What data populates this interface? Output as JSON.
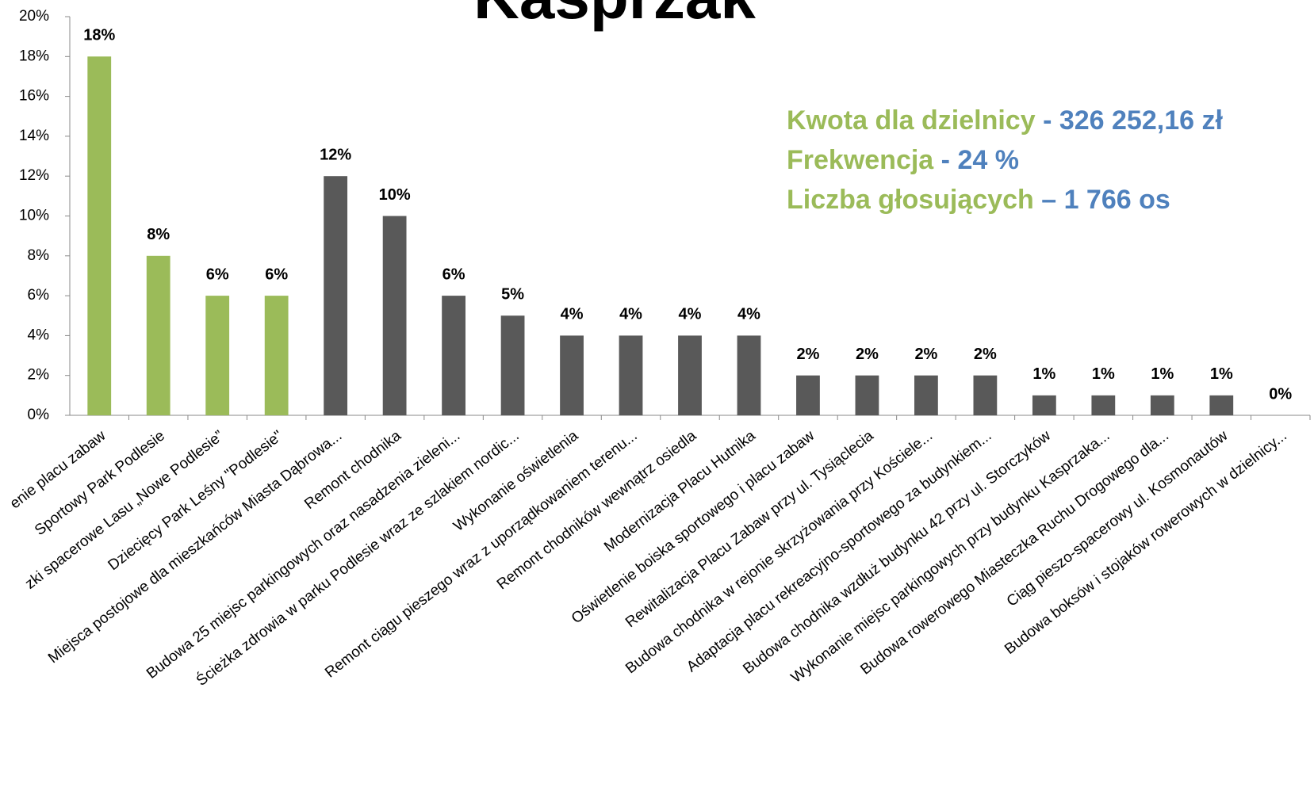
{
  "chart_data": {
    "type": "bar",
    "title": "Kasprzak",
    "categories": [
      "enie placu zabaw",
      "Sportowy Park Podlesie",
      "zki spacerowe Lasu „Nowe Podlesie”",
      "Dziecięcy Park Leśny \"Podlesie\"",
      "Miejsca postojowe dla mieszkańców Miasta Dąbrowa...",
      "Remont chodnika",
      "Budowa 25 miejsc parkingowych oraz nasadzenia zieleni...",
      "Ścieżka zdrowia w parku Podlesie wraz ze szlakiem nordic...",
      "Wykonanie oświetlenia",
      "Remont ciągu pieszego wraz z uporządkowaniem terenu...",
      "Remont chodników wewnątrz osiedla",
      "Modernizacja Placu Hutnika",
      "Oświetlenie boiska sportowego i placu zabaw",
      "Rewitalizacja Placu Zabaw przy ul. Tysiąclecia",
      "Budowa chodnika w rejonie skrzyżowania przy Kościele...",
      "Adaptacja placu rekreacyjno-sportowego za budynkiem...",
      "Budowa chodnika wzdłuż budynku 42 przy ul. Storczyków",
      "Wykonanie miejsc parkingowych przy budynku Kasprzaka...",
      "Budowa rowerowego Miasteczka Ruchu Drogowego dla...",
      "Ciąg pieszo-spacerowy ul. Kosmonautów",
      "Budowa boksów i stojaków rowerowych w dzielnicy..."
    ],
    "values": [
      18,
      8,
      6,
      6,
      12,
      10,
      6,
      5,
      4,
      4,
      4,
      4,
      2,
      2,
      2,
      2,
      1,
      1,
      1,
      1,
      0
    ],
    "value_labels": [
      "18%",
      "8%",
      "6%",
      "6%",
      "12%",
      "10%",
      "6%",
      "5%",
      "4%",
      "4%",
      "4%",
      "4%",
      "2%",
      "2%",
      "2%",
      "2%",
      "1%",
      "1%",
      "1%",
      "1%",
      "0%"
    ],
    "colors": [
      "#9bbb59",
      "#9bbb59",
      "#9bbb59",
      "#9bbb59",
      "#595959",
      "#595959",
      "#595959",
      "#595959",
      "#595959",
      "#595959",
      "#595959",
      "#595959",
      "#595959",
      "#595959",
      "#595959",
      "#595959",
      "#595959",
      "#595959",
      "#595959",
      "#595959",
      "#595959"
    ],
    "ylim": [
      0,
      20
    ],
    "yticks": [
      {
        "value": 0,
        "label": "0%"
      },
      {
        "value": 2,
        "label": "2%"
      },
      {
        "value": 4,
        "label": "4%"
      },
      {
        "value": 6,
        "label": "6%"
      },
      {
        "value": 8,
        "label": "8%"
      },
      {
        "value": 10,
        "label": "10%"
      },
      {
        "value": 12,
        "label": "12%"
      },
      {
        "value": 14,
        "label": "14%"
      },
      {
        "value": 16,
        "label": "16%"
      },
      {
        "value": 18,
        "label": "18%"
      },
      {
        "value": 20,
        "label": "20%"
      }
    ],
    "annotations": [
      {
        "label": "Kwota dla dzielnicy",
        "value": "- 326 252,16 zł"
      },
      {
        "label": "Frekwencja",
        "value": "- 24 %"
      },
      {
        "label": "Liczba głosujących",
        "value": "– 1 766 os"
      }
    ]
  }
}
